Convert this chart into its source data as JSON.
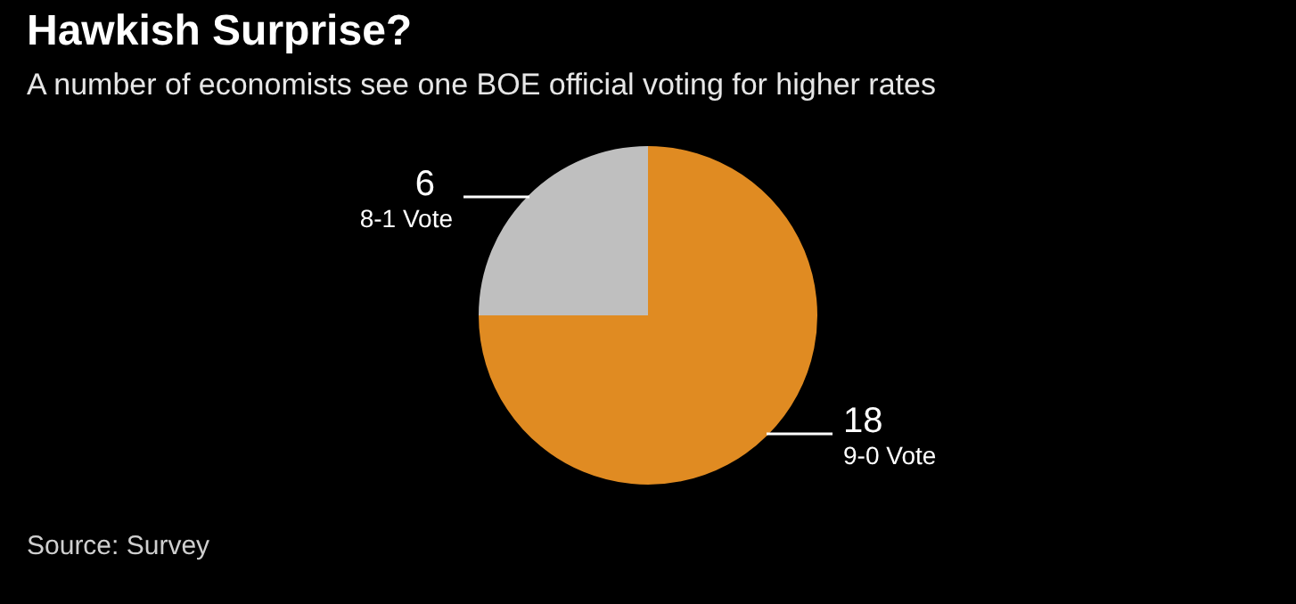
{
  "chart_data": {
    "type": "pie",
    "title": "Hawkish Surprise?",
    "subtitle": "A number of economists see one BOE official voting for higher rates",
    "categories": [
      "9-0 Vote",
      "8-1 Vote"
    ],
    "values": [
      18,
      6
    ],
    "colors": [
      "#e08b22",
      "#bfbfbf"
    ],
    "data_labels": true,
    "annotations": [
      "Source: Survey"
    ]
  }
}
